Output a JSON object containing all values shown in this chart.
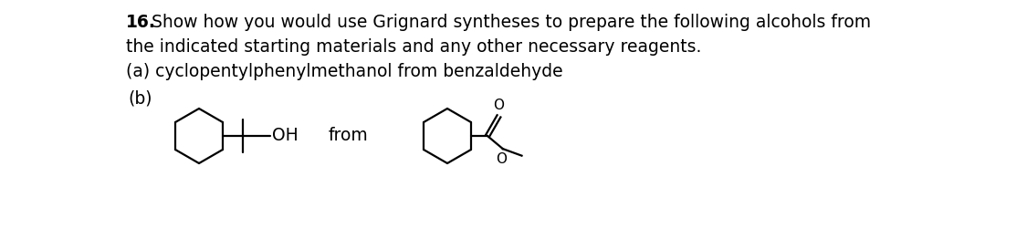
{
  "background_color": "#ffffff",
  "text_color": "#000000",
  "title_bold": "16.",
  "title_text": " Show how you would use Grignard syntheses to prepare the following alcohols from",
  "line2": "the indicated starting materials and any other necessary reagents.",
  "line3": "(a) cyclopentylphenylmethanol from benzaldehyde",
  "part_b_label": "(b)",
  "from_text": "from",
  "oh_text": "OH",
  "o_text": "O",
  "font_size_main": 13.5,
  "lw": 1.6
}
